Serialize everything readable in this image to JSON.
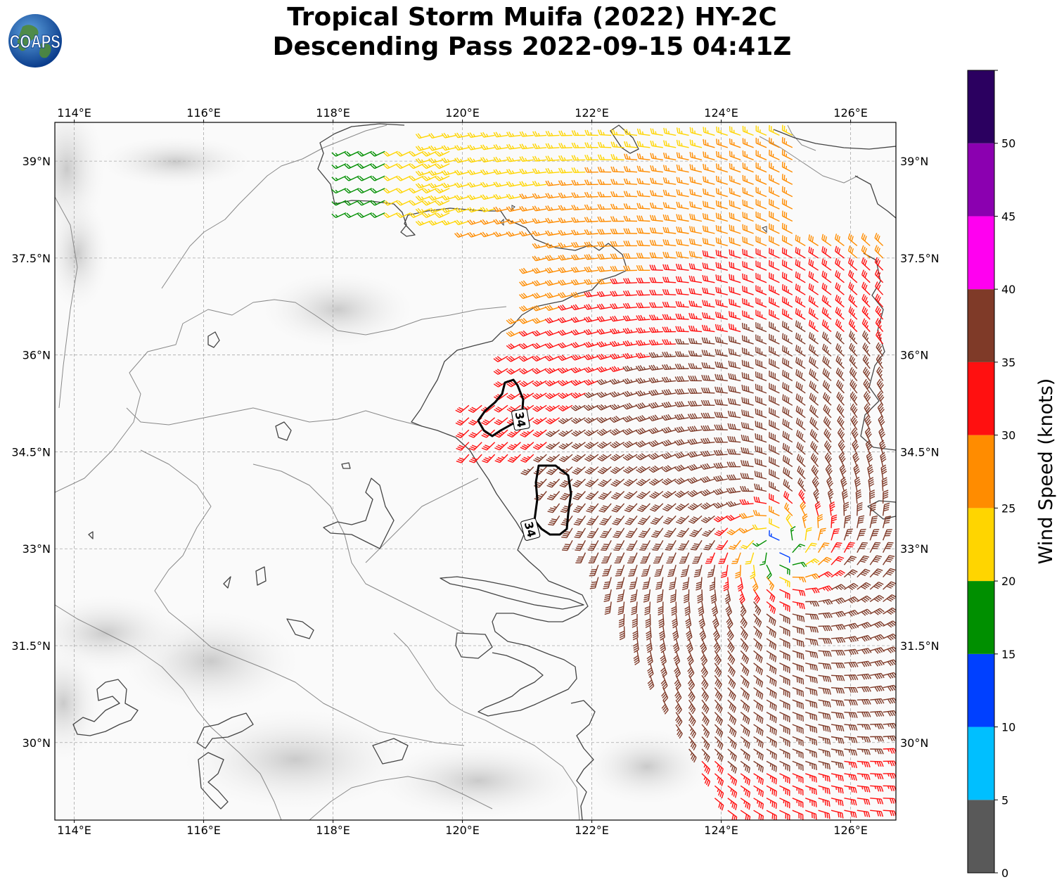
{
  "title": {
    "line1": "Tropical Storm Muifa (2022) HY-2C",
    "line2": "Descending Pass 2022-09-15 04:41Z"
  },
  "logo": {
    "text": "COAPS",
    "icon": "globe-icon"
  },
  "map": {
    "lon_range": [
      113.7,
      126.7
    ],
    "lat_range": [
      28.8,
      39.6
    ],
    "lon_ticks": [
      {
        "value": 114,
        "label": "114°E"
      },
      {
        "value": 116,
        "label": "116°E"
      },
      {
        "value": 118,
        "label": "118°E"
      },
      {
        "value": 120,
        "label": "120°E"
      },
      {
        "value": 122,
        "label": "122°E"
      },
      {
        "value": 124,
        "label": "124°E"
      },
      {
        "value": 126,
        "label": "126°E"
      }
    ],
    "lat_ticks": [
      {
        "value": 30,
        "label": "30°N"
      },
      {
        "value": 31.5,
        "label": "31.5°N"
      },
      {
        "value": 33,
        "label": "33°N"
      },
      {
        "value": 34.5,
        "label": "34.5°N"
      },
      {
        "value": 36,
        "label": "36°N"
      },
      {
        "value": 37.5,
        "label": "37.5°N"
      },
      {
        "value": 39,
        "label": "39°N"
      }
    ],
    "gridlines": true,
    "contour_labels": [
      {
        "text": "34",
        "lon": 120.9,
        "lat": 35.0
      },
      {
        "text": "34",
        "lon": 121.05,
        "lat": 33.3
      }
    ],
    "coast_color": "#444444",
    "border_color": "#888888"
  },
  "colorbar": {
    "label": "Wind Speed (knots)",
    "ticks": [
      "0",
      "5",
      "10",
      "15",
      "20",
      "25",
      "30",
      "35",
      "40",
      "45",
      "50"
    ],
    "bands": [
      {
        "min": 0,
        "max": 5,
        "color": "#595959"
      },
      {
        "min": 5,
        "max": 10,
        "color": "#00BFFF"
      },
      {
        "min": 10,
        "max": 15,
        "color": "#0040FF"
      },
      {
        "min": 15,
        "max": 20,
        "color": "#008F00"
      },
      {
        "min": 20,
        "max": 25,
        "color": "#FFD500"
      },
      {
        "min": 25,
        "max": 30,
        "color": "#FF8C00"
      },
      {
        "min": 30,
        "max": 35,
        "color": "#FF1010"
      },
      {
        "min": 35,
        "max": 40,
        "color": "#7F3A28"
      },
      {
        "min": 40,
        "max": 45,
        "color": "#FF00F0"
      },
      {
        "min": 45,
        "max": 50,
        "color": "#8B00B0"
      },
      {
        "min": 50,
        "max": 55,
        "color": "#2B0060"
      }
    ]
  }
}
